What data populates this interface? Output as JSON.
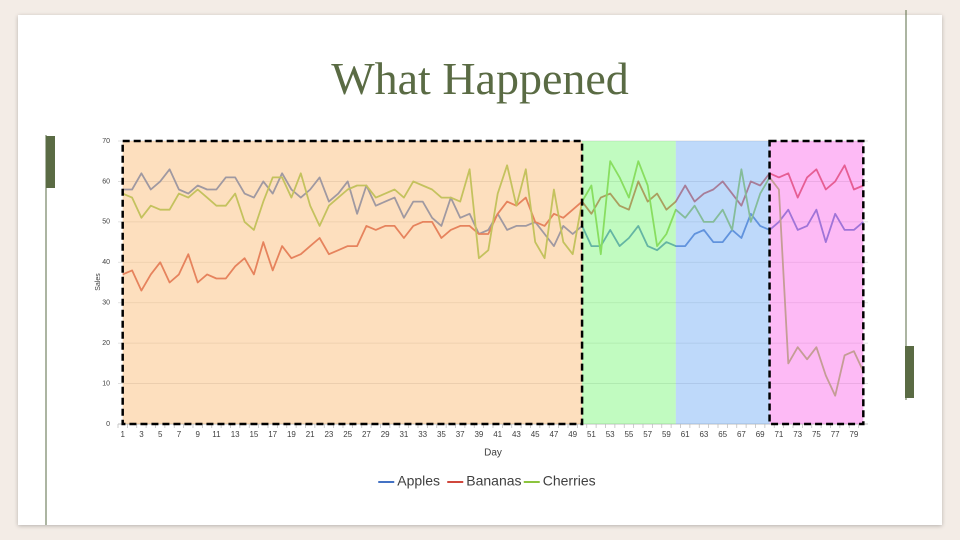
{
  "chart_data": {
    "type": "line",
    "title": "What Happened",
    "xlabel": "Day",
    "ylabel": "Sales",
    "categories": [
      1,
      null,
      3,
      null,
      5,
      null,
      7,
      null,
      9,
      null,
      11,
      null,
      13,
      null,
      15,
      null,
      17,
      null,
      19,
      null,
      21,
      null,
      23,
      null,
      25,
      null,
      27,
      null,
      29,
      null,
      31,
      null,
      33,
      null,
      35,
      null,
      37,
      null,
      39,
      null,
      41,
      null,
      43,
      null,
      45,
      null,
      47,
      null,
      49,
      null,
      51,
      null,
      53,
      null,
      55,
      null,
      57,
      null,
      59,
      null,
      61,
      null,
      63,
      null,
      65,
      null,
      67,
      null,
      69,
      null,
      71,
      null,
      73,
      null,
      75,
      null,
      77,
      null,
      79,
      null
    ],
    "series": [
      {
        "name": "Apples",
        "color": "#4472c4",
        "values": [
          58,
          58,
          62,
          58,
          60,
          63,
          58,
          57,
          59,
          58,
          58,
          61,
          61,
          57,
          56,
          60,
          57,
          62,
          58,
          56,
          58,
          61,
          55,
          57,
          60,
          52,
          59,
          54,
          55,
          56,
          51,
          55,
          55,
          51,
          49,
          56,
          51,
          52,
          47,
          48,
          52,
          48,
          49,
          49,
          50,
          47,
          44,
          49,
          47,
          49,
          44,
          44,
          48,
          44,
          46,
          49,
          44,
          43,
          45,
          44,
          44,
          47,
          48,
          45,
          45,
          48,
          46,
          52,
          49,
          48,
          50,
          53,
          48,
          49,
          53,
          45,
          52,
          48,
          48,
          50
        ]
      },
      {
        "name": "Bananas",
        "color": "#d0473c",
        "values": [
          37,
          38,
          33,
          37,
          40,
          35,
          37,
          42,
          35,
          37,
          36,
          36,
          39,
          41,
          37,
          45,
          38,
          44,
          41,
          42,
          44,
          46,
          42,
          43,
          44,
          44,
          49,
          48,
          49,
          49,
          46,
          49,
          50,
          50,
          46,
          48,
          49,
          49,
          47,
          47,
          52,
          55,
          54,
          56,
          50,
          49,
          52,
          51,
          53,
          55,
          52,
          56,
          57,
          54,
          53,
          60,
          55,
          57,
          53,
          55,
          59,
          55,
          57,
          58,
          60,
          57,
          54,
          60,
          59,
          62,
          61,
          62,
          56,
          61,
          63,
          58,
          60,
          64,
          58,
          59
        ]
      },
      {
        "name": "Cherries",
        "color": "#8cc43e",
        "values": [
          57,
          56,
          51,
          54,
          53,
          53,
          57,
          56,
          58,
          56,
          54,
          54,
          57,
          50,
          48,
          55,
          61,
          61,
          56,
          62,
          54,
          49,
          54,
          56,
          58,
          59,
          59,
          56,
          57,
          58,
          56,
          60,
          59,
          58,
          56,
          56,
          55,
          63,
          41,
          43,
          57,
          64,
          54,
          63,
          45,
          41,
          58,
          45,
          42,
          55,
          59,
          42,
          65,
          61,
          56,
          65,
          59,
          44,
          47,
          53,
          51,
          54,
          50,
          50,
          53,
          48,
          63,
          50,
          57,
          61,
          58,
          15,
          19,
          16,
          19,
          12,
          7,
          17,
          18,
          13
        ]
      }
    ],
    "regions": [
      {
        "from": 1,
        "to": 50,
        "color": "#fbbf7e",
        "border": "dashed"
      },
      {
        "from": 50,
        "to": 60,
        "color": "#84f782"
      },
      {
        "from": 60,
        "to": 70,
        "color": "#7db3f5"
      },
      {
        "from": 70,
        "to": 80,
        "color": "#fb75eb",
        "border": "dashed"
      }
    ],
    "region_opacity": 0.5,
    "ylim": [
      0,
      70
    ],
    "yticks": [
      0,
      10,
      20,
      30,
      40,
      50,
      60,
      70
    ],
    "grid": true,
    "legend": "bottom"
  }
}
